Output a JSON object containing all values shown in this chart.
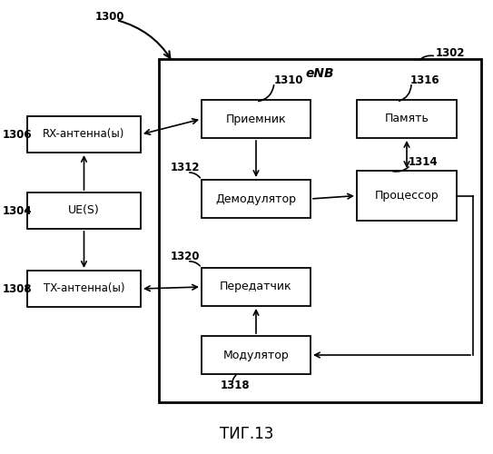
{
  "title": "ΤИГ.13",
  "bg_color": "#ffffff",
  "box_color": "#ffffff",
  "box_edge_color": "#000000",
  "arrow_color": "#000000",
  "labels": {
    "1300": "1300",
    "1302": "1302",
    "1304": "1304",
    "1306": "1306",
    "1308": "1308",
    "1310": "1310",
    "1312": "1312",
    "1314": "1314",
    "1316": "1316",
    "1318": "1318",
    "1320": "1320"
  },
  "enb_label": "eNB",
  "box_rx": "RX-антенна(ы)",
  "box_ue": "UE(S)",
  "box_tx": "TX-антенна(ы)",
  "box_receiver": "Приемник",
  "box_demod": "Демодулятор",
  "box_transmitter": "Передатчик",
  "box_modulator": "Модулятор",
  "box_processor": "Процессор",
  "box_memory": "Память",
  "figsize": [
    5.43,
    5.0
  ],
  "dpi": 100
}
